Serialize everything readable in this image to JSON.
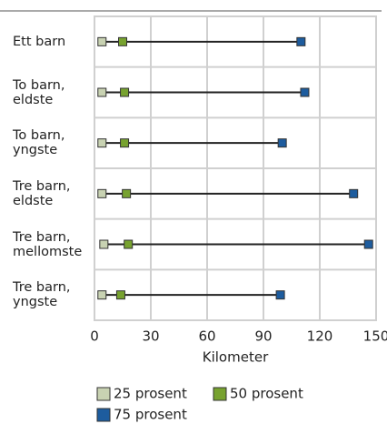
{
  "chart_data": {
    "type": "dot-range",
    "categories": [
      "Ett barn",
      "To barn,\neldste",
      "To barn,\nyngste",
      "Tre barn,\neldste",
      "Tre barn,\nmellomste",
      "Tre barn,\nyngste"
    ],
    "series": [
      {
        "name": "25 prosent",
        "color": "#c8d2b2",
        "values": [
          4,
          4,
          4,
          4,
          5,
          4
        ]
      },
      {
        "name": "50 prosent",
        "color": "#77a22f",
        "values": [
          15,
          16,
          16,
          17,
          18,
          14
        ]
      },
      {
        "name": "75 prosent",
        "color": "#1d5c9e",
        "values": [
          110,
          112,
          100,
          138,
          146,
          99
        ]
      }
    ],
    "xlabel": "Kilometer",
    "xlim": [
      0,
      150
    ],
    "xticks": [
      0,
      30,
      60,
      90,
      120,
      150
    ],
    "grid": true
  }
}
